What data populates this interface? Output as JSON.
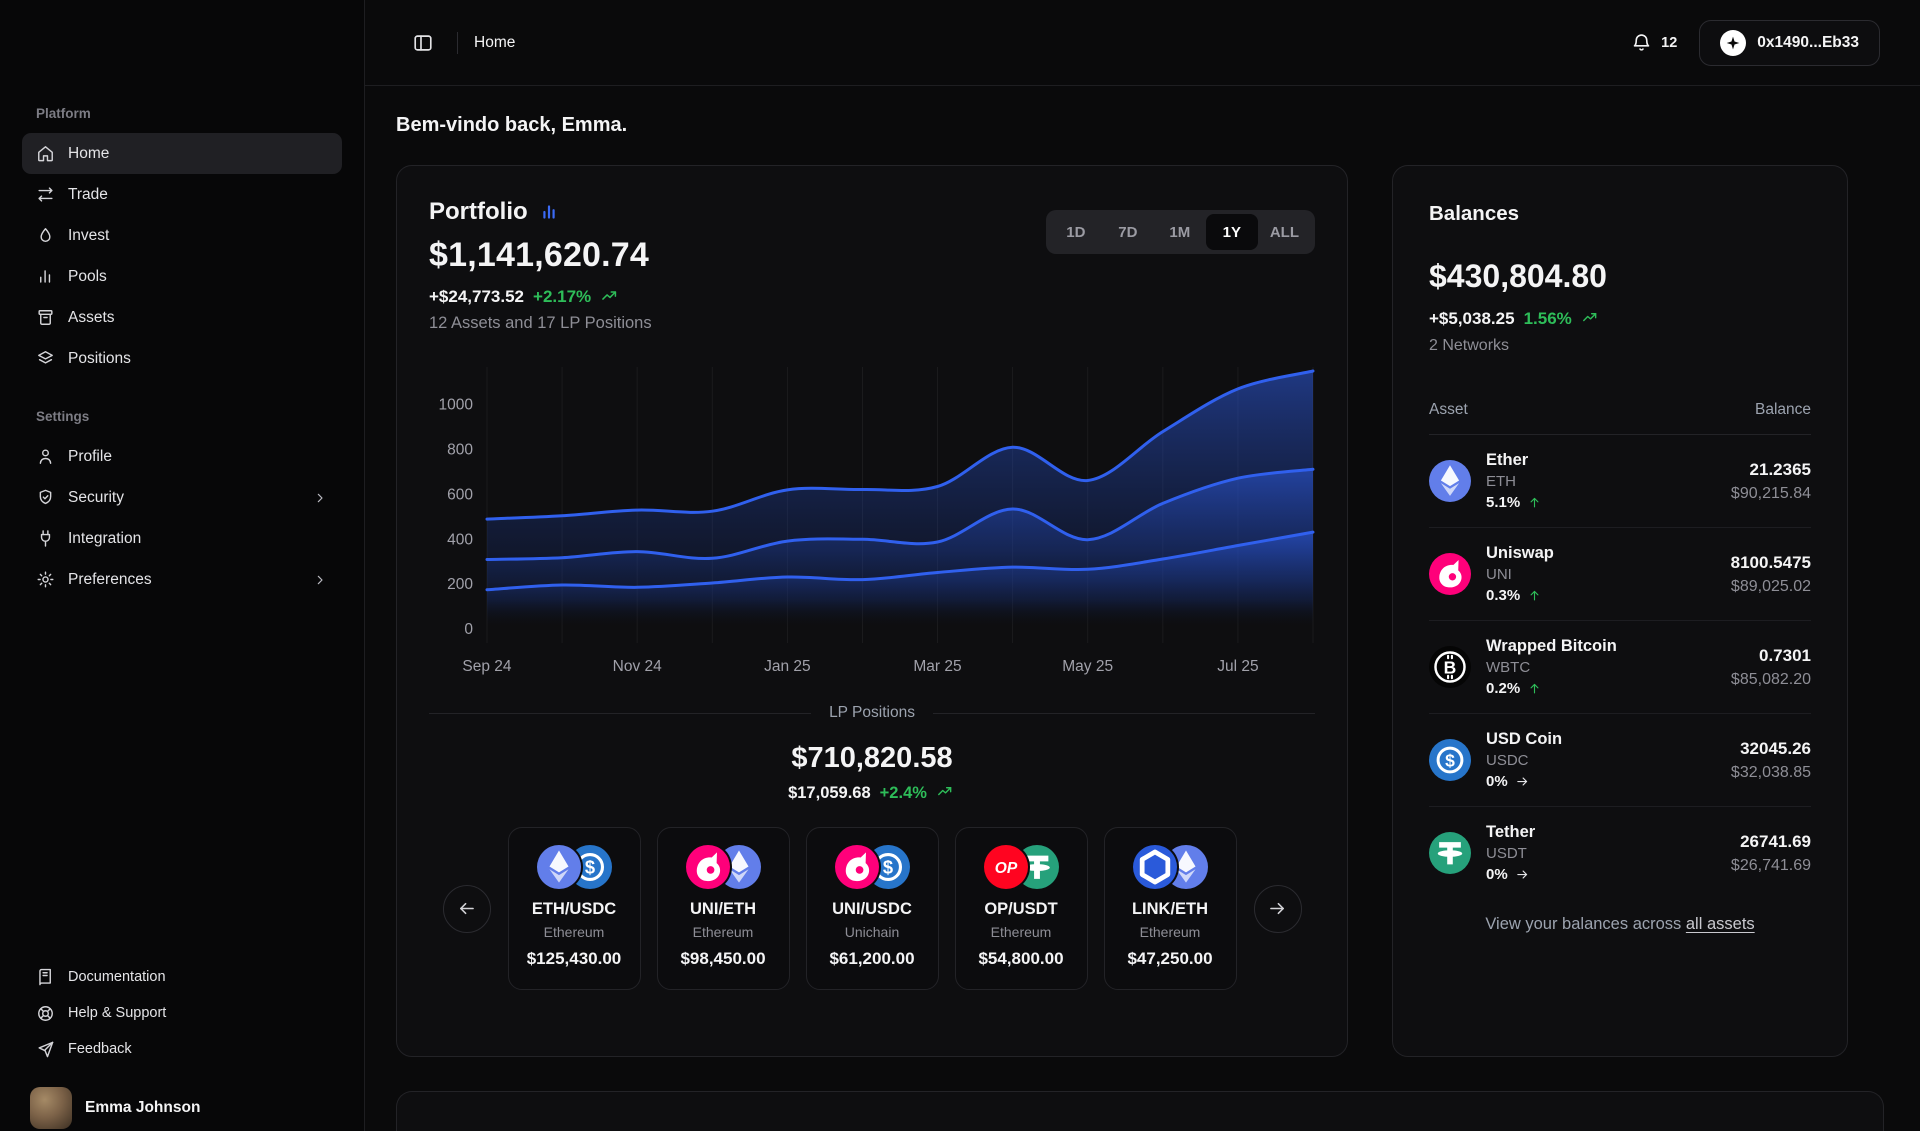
{
  "colors": {
    "accent_blue": "#3b6af5",
    "chart_line": "#3060ee",
    "chart_fill": "#2e5be0",
    "green": "#2ebd59",
    "card_border": "#232327"
  },
  "coin_colors": {
    "ETH": "#627eea",
    "USDC": "#2775ca",
    "UNI": "#ff007a",
    "OP": "#ff0420",
    "USDT": "#26a17b",
    "LINK": "#2a5ada",
    "WBTC": "#050505"
  },
  "topbar": {
    "breadcrumb": "Home",
    "notifications_count": "12",
    "wallet_address": "0x1490...Eb33"
  },
  "sidebar": {
    "platform_label": "Platform",
    "settings_label": "Settings",
    "platform_items": [
      {
        "label": "Home",
        "icon": "home",
        "active": true
      },
      {
        "label": "Trade",
        "icon": "trade",
        "active": false
      },
      {
        "label": "Invest",
        "icon": "invest",
        "active": false
      },
      {
        "label": "Pools",
        "icon": "pools",
        "active": false
      },
      {
        "label": "Assets",
        "icon": "assets",
        "active": false
      },
      {
        "label": "Positions",
        "icon": "positions",
        "active": false
      }
    ],
    "settings_items": [
      {
        "label": "Profile",
        "icon": "profile",
        "chevron": false
      },
      {
        "label": "Security",
        "icon": "security",
        "chevron": true
      },
      {
        "label": "Integration",
        "icon": "integration",
        "chevron": false
      },
      {
        "label": "Preferences",
        "icon": "preferences",
        "chevron": true
      }
    ],
    "footer_items": [
      {
        "label": "Documentation",
        "icon": "documentation"
      },
      {
        "label": "Help & Support",
        "icon": "help"
      },
      {
        "label": "Feedback",
        "icon": "feedback"
      }
    ],
    "user": {
      "name": "Emma Johnson"
    }
  },
  "greeting": "Bem-vindo back, Emma.",
  "portfolio": {
    "title": "Portfolio",
    "value": "$1,141,620.74",
    "change_amount": "+$24,773.52",
    "change_pct": "+2.17%",
    "subtitle": "12 Assets and 17 LP Positions",
    "ranges": [
      "1D",
      "7D",
      "1M",
      "1Y",
      "ALL"
    ],
    "active_range": "1Y"
  },
  "chart_data": {
    "type": "area",
    "x": [
      "Sep 24",
      "Oct 24",
      "Nov 24",
      "Dec 24",
      "Jan 25",
      "Feb 25",
      "Mar 25",
      "Apr 25",
      "May 25",
      "Jun 25",
      "Jul 25",
      "Aug 25"
    ],
    "x_tick_indices": [
      0,
      2,
      4,
      6,
      8,
      10
    ],
    "x_tick_labels": [
      "Sep 24",
      "Nov 24",
      "Jan 25",
      "Mar 25",
      "May 25",
      "Jul 25"
    ],
    "y_ticks": [
      0,
      200,
      400,
      600,
      800,
      1000
    ],
    "ylim": [
      0,
      1150
    ],
    "grid": "vertical-only",
    "legend": "none",
    "series": [
      {
        "name": "total",
        "values": [
          490,
          505,
          530,
          525,
          620,
          622,
          635,
          810,
          662,
          880,
          1070,
          1150
        ]
      },
      {
        "name": "middle",
        "values": [
          310,
          318,
          345,
          315,
          392,
          400,
          388,
          535,
          398,
          560,
          672,
          712
        ]
      },
      {
        "name": "lower",
        "values": [
          175,
          196,
          186,
          205,
          232,
          220,
          252,
          276,
          266,
          312,
          372,
          432
        ]
      }
    ]
  },
  "lp": {
    "label": "LP Positions",
    "value": "$710,820.58",
    "change_amount": "$17,059.68",
    "change_pct": "+2.4%",
    "positions": [
      {
        "pair": "ETH/USDC",
        "network": "Ethereum",
        "value": "$125,430.00",
        "coins": [
          "ETH",
          "USDC"
        ]
      },
      {
        "pair": "UNI/ETH",
        "network": "Ethereum",
        "value": "$98,450.00",
        "coins": [
          "UNI",
          "ETH"
        ]
      },
      {
        "pair": "UNI/USDC",
        "network": "Unichain",
        "value": "$61,200.00",
        "coins": [
          "UNI",
          "USDC"
        ]
      },
      {
        "pair": "OP/USDT",
        "network": "Ethereum",
        "value": "$54,800.00",
        "coins": [
          "OP",
          "USDT"
        ]
      },
      {
        "pair": "LINK/ETH",
        "network": "Ethereum",
        "value": "$47,250.00",
        "coins": [
          "LINK",
          "ETH"
        ]
      }
    ]
  },
  "balances": {
    "title": "Balances",
    "value": "$430,804.80",
    "change_amount": "+$5,038.25",
    "change_pct": "1.56%",
    "networks": "2 Networks",
    "columns": {
      "asset": "Asset",
      "balance": "Balance"
    },
    "rows": [
      {
        "name": "Ether",
        "symbol": "ETH",
        "coin": "ETH",
        "change": "5.1%",
        "direction": "up",
        "amount": "21.2365",
        "usd": "$90,215.84"
      },
      {
        "name": "Uniswap",
        "symbol": "UNI",
        "coin": "UNI",
        "change": "0.3%",
        "direction": "up",
        "amount": "8100.5475",
        "usd": "$89,025.02"
      },
      {
        "name": "Wrapped Bitcoin",
        "symbol": "WBTC",
        "coin": "WBTC",
        "change": "0.2%",
        "direction": "up",
        "amount": "0.7301",
        "usd": "$85,082.20"
      },
      {
        "name": "USD Coin",
        "symbol": "USDC",
        "coin": "USDC",
        "change": "0%",
        "direction": "flat",
        "amount": "32045.26",
        "usd": "$32,038.85"
      },
      {
        "name": "Tether",
        "symbol": "USDT",
        "coin": "USDT",
        "change": "0%",
        "direction": "flat",
        "amount": "26741.69",
        "usd": "$26,741.69"
      }
    ],
    "footer_text": "View your balances across ",
    "footer_link": "all assets"
  }
}
